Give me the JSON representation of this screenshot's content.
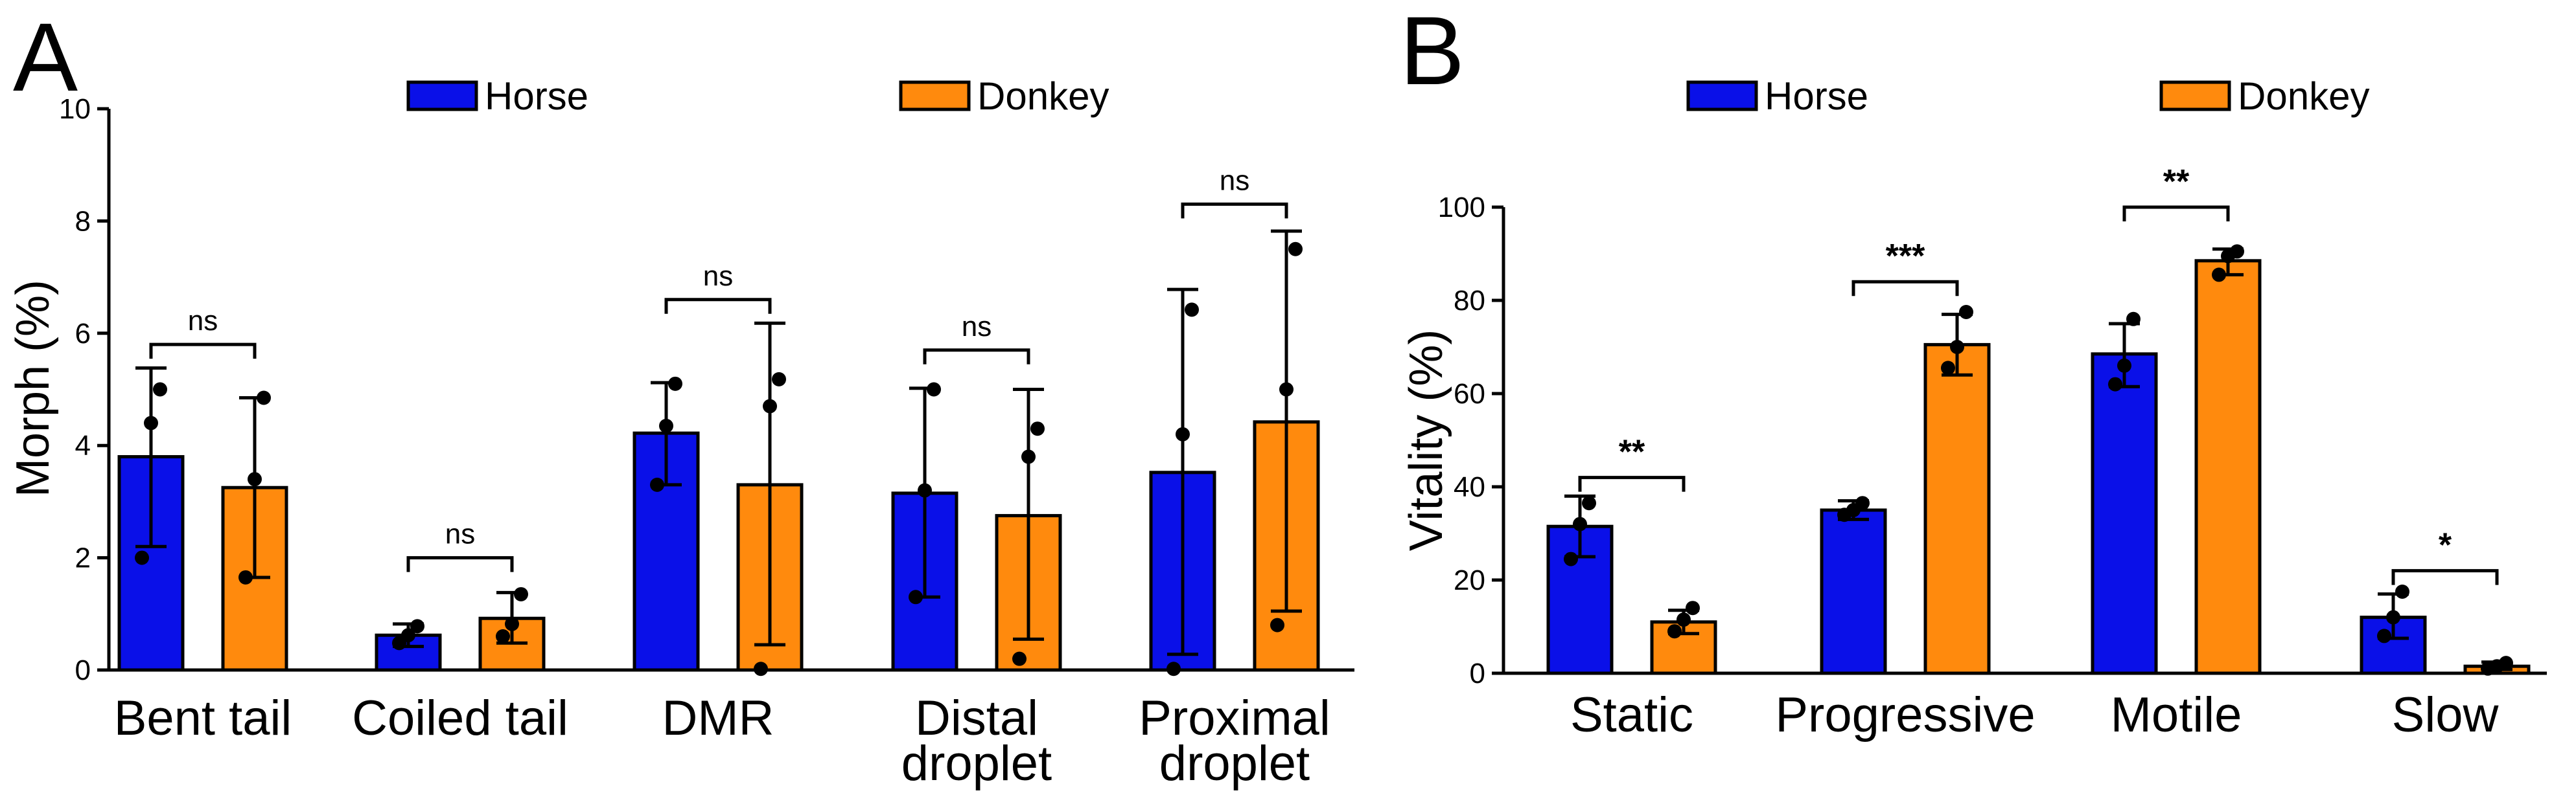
{
  "colors": {
    "horse": "#0a10e8",
    "donkey": "#ff8a0d",
    "stroke": "#000000"
  },
  "chart_data": [
    {
      "panel": "A",
      "type": "bar",
      "ylabel": "Morph (%)",
      "ylim": [
        0,
        10
      ],
      "yticks": [
        0,
        2,
        4,
        6,
        8,
        10
      ],
      "legend_position": "top",
      "categories": [
        "Bent tail",
        "Coiled tail",
        "DMR",
        "Distal droplet",
        "Proximal droplet"
      ],
      "category_lines": [
        [
          "Bent tail"
        ],
        [
          "Coiled tail"
        ],
        [
          "DMR"
        ],
        [
          "Distal",
          "droplet"
        ],
        [
          "Proximal",
          "droplet"
        ]
      ],
      "series": [
        {
          "name": "Horse",
          "values": [
            3.8,
            0.62,
            4.22,
            3.15,
            3.52
          ],
          "err_low": [
            2.2,
            0.42,
            3.3,
            1.3,
            0.28
          ],
          "err_high": [
            5.38,
            0.82,
            5.12,
            5.02,
            6.78
          ],
          "points": [
            [
              2.0,
              4.4,
              5.0
            ],
            [
              0.48,
              0.62,
              0.78
            ],
            [
              3.3,
              4.35,
              5.1
            ],
            [
              1.3,
              3.2,
              5.0
            ],
            [
              0.02,
              4.2,
              6.42
            ]
          ]
        },
        {
          "name": "Donkey",
          "values": [
            3.25,
            0.92,
            3.3,
            2.75,
            4.42
          ],
          "err_low": [
            1.65,
            0.48,
            0.45,
            0.55,
            1.05
          ],
          "err_high": [
            4.85,
            1.38,
            6.18,
            5.0,
            7.82
          ],
          "points": [
            [
              1.65,
              3.4,
              4.85
            ],
            [
              0.6,
              0.82,
              1.35
            ],
            [
              0.02,
              4.7,
              5.18
            ],
            [
              0.2,
              3.8,
              4.3
            ],
            [
              0.8,
              5.0,
              7.5
            ]
          ]
        }
      ],
      "significance": [
        "ns",
        "ns",
        "ns",
        "ns",
        "ns"
      ],
      "sig_bracket_y": [
        5.8,
        2.0,
        6.6,
        5.7,
        8.3
      ]
    },
    {
      "panel": "B",
      "type": "bar",
      "ylabel": "Vitality (%)",
      "ylim": [
        0,
        100
      ],
      "yticks": [
        0,
        20,
        40,
        60,
        80,
        100
      ],
      "legend_position": "top",
      "categories": [
        "Static",
        "Progressive",
        "Motile",
        "Slow"
      ],
      "category_lines": [
        [
          "Static"
        ],
        [
          "Progressive"
        ],
        [
          "Motile"
        ],
        [
          "Slow"
        ]
      ],
      "series": [
        {
          "name": "Horse",
          "values": [
            31.5,
            35.0,
            68.5,
            12.0
          ],
          "err_low": [
            25.0,
            33.0,
            61.5,
            7.5
          ],
          "err_high": [
            38.0,
            37.0,
            75.0,
            17.0
          ],
          "points": [
            [
              24.5,
              32.0,
              36.5
            ],
            [
              34.0,
              35.0,
              36.5
            ],
            [
              62.0,
              66.0,
              76.0
            ],
            [
              8.0,
              12.0,
              17.5
            ]
          ]
        },
        {
          "name": "Donkey",
          "values": [
            11.0,
            70.5,
            88.5,
            1.5
          ],
          "err_low": [
            8.5,
            64.0,
            85.5,
            0.8
          ],
          "err_high": [
            13.5,
            77.0,
            91.0,
            2.4
          ],
          "points": [
            [
              9.0,
              11.5,
              14.0
            ],
            [
              65.5,
              70.0,
              77.5
            ],
            [
              85.5,
              89.5,
              90.5
            ],
            [
              1.0,
              1.5,
              2.2
            ]
          ]
        }
      ],
      "significance": [
        "**",
        "***",
        "**",
        "*"
      ],
      "sig_bracket_y": [
        42.0,
        84.0,
        100.0,
        22.0
      ]
    }
  ]
}
